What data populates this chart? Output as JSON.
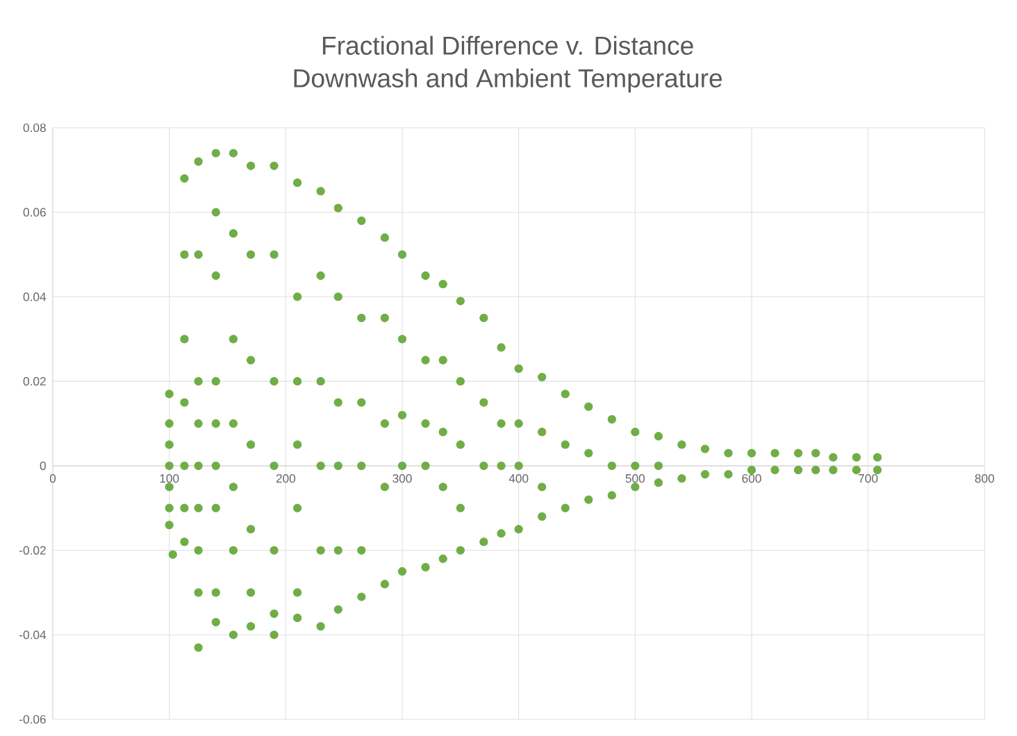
{
  "chart_data": {
    "type": "scatter",
    "title": "Fractional Difference v. Distance",
    "subtitle": "Downwash and Ambient Temperature",
    "xlim": [
      0,
      800
    ],
    "xticks": [
      0,
      100,
      200,
      300,
      400,
      500,
      600,
      700,
      800
    ],
    "ylim": [
      -0.06,
      0.08
    ],
    "yticks": [
      -0.06,
      -0.04,
      -0.02,
      0,
      0.02,
      0.04,
      0.06,
      0.08
    ],
    "grid": true,
    "marker": "circle",
    "color": "#70ad47",
    "x": [
      100,
      100,
      100,
      100,
      100,
      100,
      100,
      103,
      113,
      113,
      113,
      113,
      113,
      113,
      113,
      125,
      125,
      125,
      125,
      125,
      125,
      125,
      125,
      125,
      140,
      140,
      140,
      140,
      140,
      140,
      140,
      140,
      140,
      155,
      155,
      155,
      155,
      155,
      155,
      155,
      170,
      170,
      170,
      170,
      170,
      170,
      170,
      190,
      190,
      190,
      190,
      190,
      190,
      190,
      210,
      210,
      210,
      210,
      210,
      210,
      210,
      230,
      230,
      230,
      230,
      230,
      230,
      245,
      245,
      245,
      245,
      245,
      245,
      265,
      265,
      265,
      265,
      265,
      265,
      285,
      285,
      285,
      285,
      285,
      300,
      300,
      300,
      300,
      300,
      320,
      320,
      320,
      320,
      320,
      335,
      335,
      335,
      335,
      335,
      350,
      350,
      350,
      350,
      350,
      370,
      370,
      370,
      370,
      385,
      385,
      385,
      385,
      400,
      400,
      400,
      400,
      420,
      420,
      420,
      420,
      440,
      440,
      440,
      460,
      460,
      460,
      480,
      480,
      480,
      500,
      500,
      500,
      520,
      520,
      520,
      540,
      540,
      560,
      560,
      580,
      580,
      600,
      600,
      620,
      620,
      640,
      640,
      655,
      655,
      670,
      670,
      690,
      690,
      708,
      708
    ],
    "values": [
      0.017,
      0.01,
      0.005,
      0,
      -0.005,
      -0.01,
      -0.014,
      -0.021,
      0.068,
      0.05,
      0.03,
      0.015,
      0,
      -0.01,
      -0.018,
      0.072,
      0.05,
      0.02,
      0.01,
      0,
      -0.01,
      -0.02,
      -0.03,
      -0.043,
      0.074,
      0.06,
      0.045,
      0.02,
      0.01,
      0,
      -0.01,
      -0.03,
      -0.037,
      0.074,
      0.055,
      0.03,
      0.01,
      -0.005,
      -0.02,
      -0.04,
      0.071,
      0.05,
      0.025,
      0.005,
      -0.015,
      -0.03,
      -0.038,
      0.071,
      0.05,
      0.02,
      0,
      -0.02,
      -0.035,
      -0.04,
      0.067,
      0.04,
      0.02,
      0.005,
      -0.01,
      -0.03,
      -0.036,
      0.065,
      0.045,
      0.02,
      0,
      -0.02,
      -0.038,
      0.061,
      0.04,
      0.015,
      0,
      -0.02,
      -0.034,
      0.058,
      0.035,
      0.015,
      0,
      -0.02,
      -0.031,
      0.054,
      0.035,
      0.01,
      -0.005,
      -0.028,
      0.05,
      0.03,
      0.012,
      0,
      -0.025,
      0.045,
      0.025,
      0.01,
      0,
      -0.024,
      0.043,
      0.025,
      0.008,
      -0.005,
      -0.022,
      0.039,
      0.02,
      0.005,
      -0.01,
      -0.02,
      0.035,
      0.015,
      0,
      -0.018,
      0.028,
      0.01,
      0,
      -0.016,
      0.023,
      0.01,
      0,
      -0.015,
      0.021,
      0.008,
      -0.005,
      -0.012,
      0.017,
      0.005,
      -0.01,
      0.014,
      0.003,
      -0.008,
      0.011,
      0,
      -0.007,
      0.008,
      0,
      -0.005,
      0.007,
      0,
      -0.004,
      0.005,
      -0.003,
      0.004,
      -0.002,
      0.003,
      -0.002,
      0.003,
      -0.001,
      0.003,
      -0.001,
      0.003,
      -0.001,
      0.003,
      -0.001,
      0.002,
      -0.001,
      0.002,
      -0.001,
      0.002,
      -0.001
    ]
  }
}
